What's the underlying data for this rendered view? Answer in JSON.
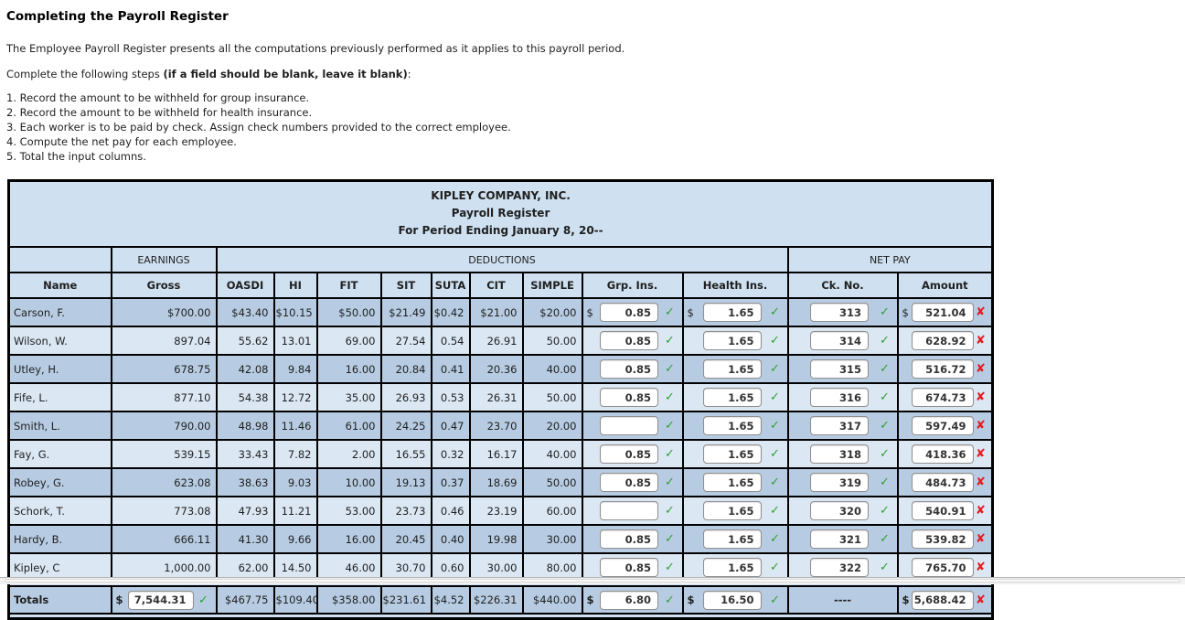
{
  "page": {
    "title": "Completing the Payroll Register",
    "intro": "The Employee Payroll Register presents all the computations previously performed as it applies to this payroll period.",
    "steps_intro_prefix": "Complete the following steps ",
    "steps_intro_bold": "(if a field should be blank, leave it blank)",
    "steps_intro_suffix": ":",
    "steps": [
      "1. Record the amount to be withheld for group insurance.",
      "2. Record the amount to be withheld for health insurance.",
      "3. Each worker is to be paid by check. Assign check numbers provided to the correct employee.",
      "4. Compute the net pay for each employee.",
      "5. Total the input columns."
    ]
  },
  "register": {
    "company": "KIPLEY COMPANY, INC.",
    "subtitle": "Payroll Register",
    "period": "For Period Ending January 8, 20--",
    "groups": {
      "earnings": "EARNINGS",
      "deductions": "DEDUCTIONS",
      "net_pay": "NET PAY"
    },
    "columns": [
      "Name",
      "Gross",
      "OASDI",
      "HI",
      "FIT",
      "SIT",
      "SUTA",
      "CIT",
      "SIMPLE",
      "Grp. Ins.",
      "Health Ins.",
      "Ck. No.",
      "Amount"
    ],
    "icons": {
      "correct": "✓",
      "incorrect": "✘"
    },
    "colors": {
      "correct": "#2fa12f",
      "incorrect": "#e51b1f",
      "row_dark": "#b7cce2",
      "row_light": "#dbe7f3",
      "header_blue": "#cfe1f1"
    },
    "rows": [
      {
        "name": "Carson, F.",
        "static": [
          "$700.00",
          "$43.40",
          "$10.15",
          "$50.00",
          "$21.49",
          "$0.42",
          "$21.00",
          "$20.00"
        ],
        "grp": {
          "prefix": "$",
          "value": "0.85",
          "status": "correct"
        },
        "health": {
          "prefix": "$",
          "value": "1.65",
          "status": "correct"
        },
        "ck": {
          "prefix": "",
          "value": "313",
          "status": "correct"
        },
        "amount": {
          "prefix": "$",
          "value": "521.04",
          "status": "incorrect"
        }
      },
      {
        "name": "Wilson, W.",
        "static": [
          "897.04",
          "55.62",
          "13.01",
          "69.00",
          "27.54",
          "0.54",
          "26.91",
          "50.00"
        ],
        "grp": {
          "prefix": "",
          "value": "0.85",
          "status": "correct"
        },
        "health": {
          "prefix": "",
          "value": "1.65",
          "status": "correct"
        },
        "ck": {
          "prefix": "",
          "value": "314",
          "status": "correct"
        },
        "amount": {
          "prefix": "",
          "value": "628.92",
          "status": "incorrect"
        }
      },
      {
        "name": "Utley, H.",
        "static": [
          "678.75",
          "42.08",
          "9.84",
          "16.00",
          "20.84",
          "0.41",
          "20.36",
          "40.00"
        ],
        "grp": {
          "prefix": "",
          "value": "0.85",
          "status": "correct"
        },
        "health": {
          "prefix": "",
          "value": "1.65",
          "status": "correct"
        },
        "ck": {
          "prefix": "",
          "value": "315",
          "status": "correct"
        },
        "amount": {
          "prefix": "",
          "value": "516.72",
          "status": "incorrect"
        }
      },
      {
        "name": "Fife, L.",
        "static": [
          "877.10",
          "54.38",
          "12.72",
          "35.00",
          "26.93",
          "0.53",
          "26.31",
          "50.00"
        ],
        "grp": {
          "prefix": "",
          "value": "0.85",
          "status": "correct"
        },
        "health": {
          "prefix": "",
          "value": "1.65",
          "status": "correct"
        },
        "ck": {
          "prefix": "",
          "value": "316",
          "status": "correct"
        },
        "amount": {
          "prefix": "",
          "value": "674.73",
          "status": "incorrect"
        }
      },
      {
        "name": "Smith, L.",
        "static": [
          "790.00",
          "48.98",
          "11.46",
          "61.00",
          "24.25",
          "0.47",
          "23.70",
          "20.00"
        ],
        "grp": {
          "prefix": "",
          "value": "",
          "status": "correct"
        },
        "health": {
          "prefix": "",
          "value": "1.65",
          "status": "correct"
        },
        "ck": {
          "prefix": "",
          "value": "317",
          "status": "correct"
        },
        "amount": {
          "prefix": "",
          "value": "597.49",
          "status": "incorrect"
        }
      },
      {
        "name": "Fay, G.",
        "static": [
          "539.15",
          "33.43",
          "7.82",
          "2.00",
          "16.55",
          "0.32",
          "16.17",
          "40.00"
        ],
        "grp": {
          "prefix": "",
          "value": "0.85",
          "status": "correct"
        },
        "health": {
          "prefix": "",
          "value": "1.65",
          "status": "correct"
        },
        "ck": {
          "prefix": "",
          "value": "318",
          "status": "correct"
        },
        "amount": {
          "prefix": "",
          "value": "418.36",
          "status": "incorrect"
        }
      },
      {
        "name": "Robey, G.",
        "static": [
          "623.08",
          "38.63",
          "9.03",
          "10.00",
          "19.13",
          "0.37",
          "18.69",
          "50.00"
        ],
        "grp": {
          "prefix": "",
          "value": "0.85",
          "status": "correct"
        },
        "health": {
          "prefix": "",
          "value": "1.65",
          "status": "correct"
        },
        "ck": {
          "prefix": "",
          "value": "319",
          "status": "correct"
        },
        "amount": {
          "prefix": "",
          "value": "484.73",
          "status": "incorrect"
        }
      },
      {
        "name": "Schork, T.",
        "static": [
          "773.08",
          "47.93",
          "11.21",
          "53.00",
          "23.73",
          "0.46",
          "23.19",
          "60.00"
        ],
        "grp": {
          "prefix": "",
          "value": "",
          "status": "correct"
        },
        "health": {
          "prefix": "",
          "value": "1.65",
          "status": "correct"
        },
        "ck": {
          "prefix": "",
          "value": "320",
          "status": "correct"
        },
        "amount": {
          "prefix": "",
          "value": "540.91",
          "status": "incorrect"
        }
      },
      {
        "name": "Hardy, B.",
        "static": [
          "666.11",
          "41.30",
          "9.66",
          "16.00",
          "20.45",
          "0.40",
          "19.98",
          "30.00"
        ],
        "grp": {
          "prefix": "",
          "value": "0.85",
          "status": "correct"
        },
        "health": {
          "prefix": "",
          "value": "1.65",
          "status": "correct"
        },
        "ck": {
          "prefix": "",
          "value": "321",
          "status": "correct"
        },
        "amount": {
          "prefix": "",
          "value": "539.82",
          "status": "incorrect"
        }
      },
      {
        "name": "Kipley, C",
        "static": [
          "1,000.00",
          "62.00",
          "14.50",
          "46.00",
          "30.70",
          "0.60",
          "30.00",
          "80.00"
        ],
        "grp": {
          "prefix": "",
          "value": "0.85",
          "status": "correct"
        },
        "health": {
          "prefix": "",
          "value": "1.65",
          "status": "correct"
        },
        "ck": {
          "prefix": "",
          "value": "322",
          "status": "correct"
        },
        "amount": {
          "prefix": "",
          "value": "765.70",
          "status": "incorrect"
        }
      }
    ],
    "totals": {
      "label": "Totals",
      "gross": {
        "prefix": "$",
        "value": "7,544.31",
        "status": "correct"
      },
      "static": [
        "$467.75",
        "$109.40",
        "$358.00",
        "$231.61",
        "$4.52",
        "$226.31",
        "$440.00"
      ],
      "grp": {
        "prefix": "$",
        "value": "6.80",
        "status": "correct"
      },
      "health": {
        "prefix": "$",
        "value": "16.50",
        "status": "correct"
      },
      "ck_no": "----",
      "amount": {
        "prefix": "$",
        "value": "5,688.42",
        "status": "incorrect"
      }
    }
  }
}
